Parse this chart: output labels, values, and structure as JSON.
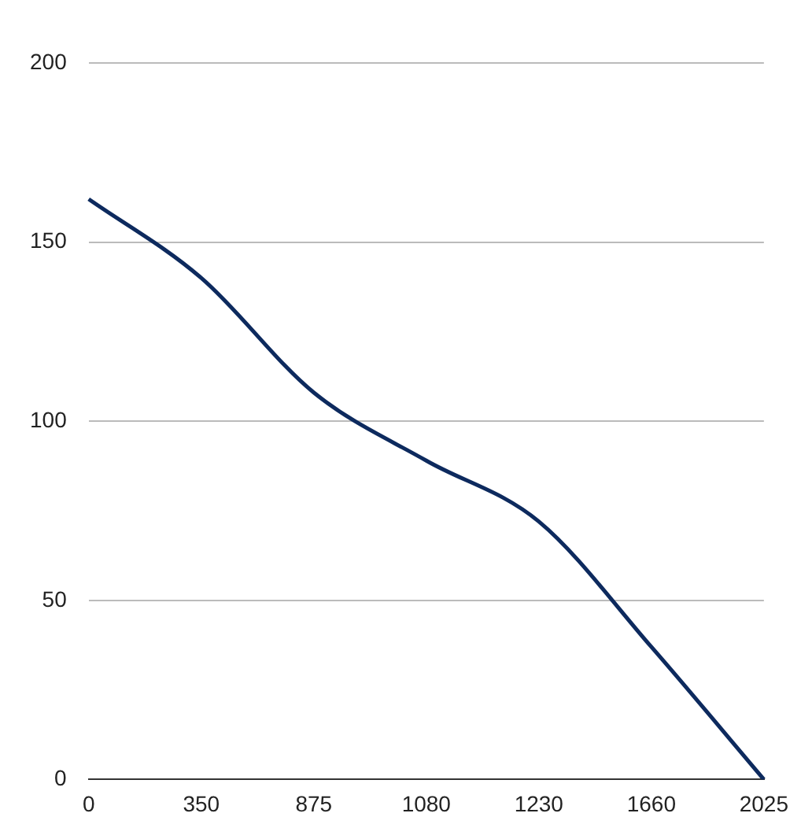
{
  "chart_data": {
    "type": "line",
    "categories": [
      "0",
      "350",
      "875",
      "1080",
      "1230",
      "1660",
      "2025"
    ],
    "series": [
      {
        "color": "#0d2a5e",
        "values": [
          162,
          140,
          108,
          89,
          72,
          37,
          0
        ]
      }
    ],
    "ylim": [
      0,
      200
    ],
    "yticks": [
      0,
      50,
      100,
      150,
      200
    ],
    "grid": "y",
    "marker": "none",
    "line_style": "solid"
  }
}
